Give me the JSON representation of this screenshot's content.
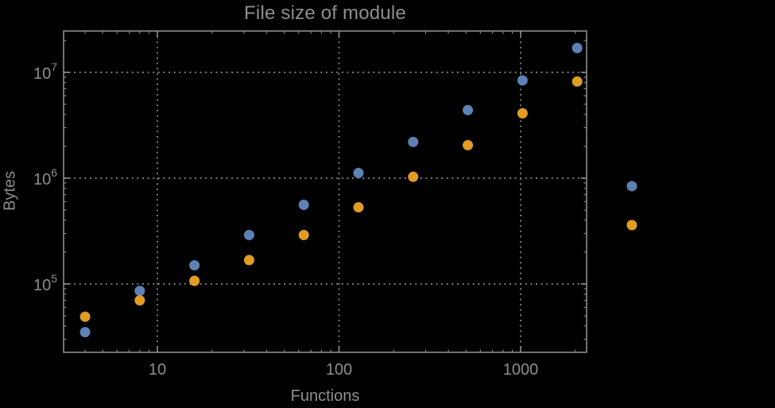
{
  "chart": {
    "title": "File size of module",
    "xlabel": "Functions",
    "ylabel": "Bytes",
    "background_color": "#000000",
    "frame_color": "#8c8c8c",
    "grid_color": "#787878",
    "text_color": "#8e8e8e"
  },
  "chart_data": {
    "type": "scatter",
    "title": "File size of module",
    "xlabel": "Functions",
    "ylabel": "Bytes",
    "x_scale": "log",
    "y_scale": "log",
    "grid": "dotted, at decade lines",
    "legend": "none",
    "x": [
      4,
      8,
      16,
      32,
      64,
      128,
      256,
      512,
      1024,
      2048,
      4096
    ],
    "series": [
      {
        "name": "series-blue",
        "color": "#5e81b5",
        "values": [
          35000,
          86000,
          150000,
          290000,
          560000,
          1120000,
          2200000,
          4400000,
          8400000,
          17000000,
          840000
        ]
      },
      {
        "name": "series-orange",
        "color": "#e09c24",
        "values": [
          49000,
          70000,
          107000,
          168000,
          290000,
          530000,
          1030000,
          2050000,
          4100000,
          8200000,
          360000
        ]
      }
    ],
    "x_ticks": {
      "major": [
        10,
        100,
        1000
      ],
      "labels": [
        "10",
        "100",
        "1000"
      ]
    },
    "y_ticks": {
      "major": [
        100000,
        1000000,
        10000000
      ],
      "labels": [
        {
          "base": "10",
          "exp": "5"
        },
        {
          "base": "10",
          "exp": "6"
        },
        {
          "base": "10",
          "exp": "7"
        }
      ]
    },
    "xlim_log": [
      0.4836,
      3.3632
    ],
    "ylim_log": [
      4.3534,
      7.391
    ],
    "note": "last pair of points (x=4096) is drawn outside the plot frame (no plot-range clipping)"
  }
}
